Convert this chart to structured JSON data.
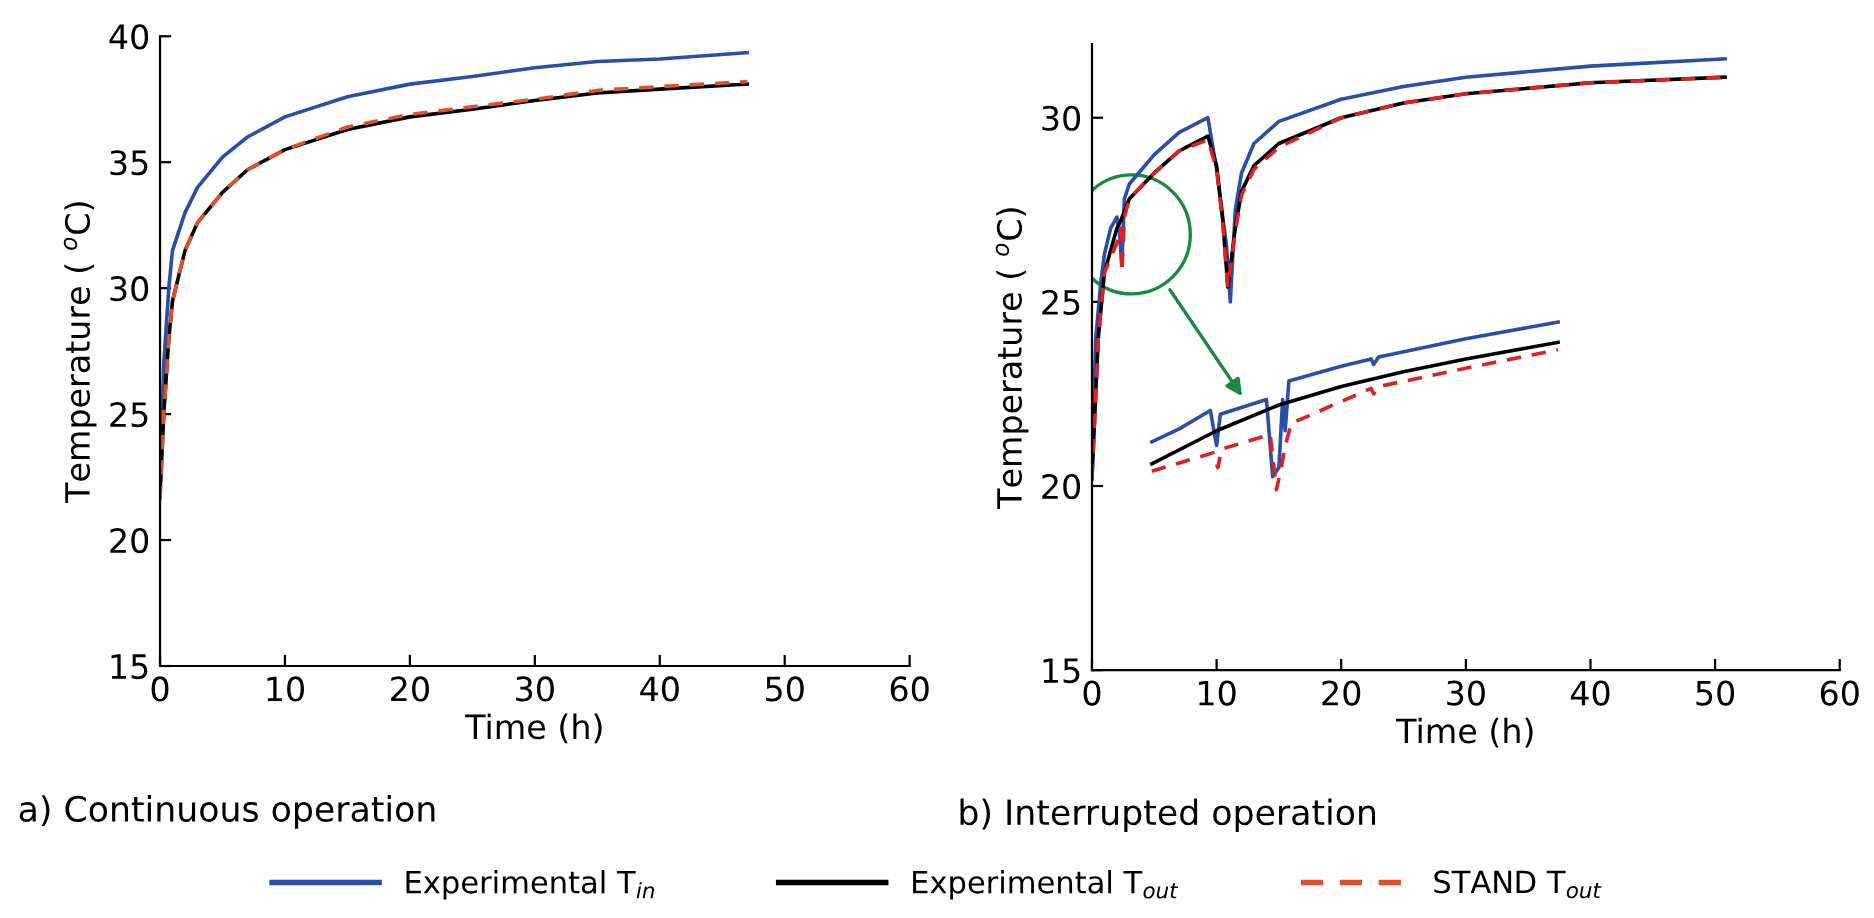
{
  "chart_data": [
    {
      "type": "line",
      "title": "a) Continuous operation",
      "xlabel": "Time (h)",
      "ylabel": "Temperature ( $^{o}$C)",
      "xlim": [
        0,
        60
      ],
      "ylim": [
        15,
        40
      ],
      "xticks": [
        0,
        10,
        20,
        30,
        40,
        50,
        60
      ],
      "yticks": [
        15,
        20,
        25,
        30,
        35,
        40
      ],
      "grid": false,
      "legend": "bottom",
      "series": [
        {
          "name": "Experimental T$_{in}$",
          "color": "#2a4fa8",
          "line_style": "solid",
          "x": [
            0,
            0.3,
            0.7,
            1,
            2,
            3,
            5,
            7,
            10,
            15,
            20,
            25,
            30,
            35,
            40,
            47
          ],
          "values": [
            22,
            27,
            30,
            31.5,
            33,
            34,
            35.2,
            36,
            36.8,
            37.6,
            38.1,
            38.4,
            38.75,
            39.0,
            39.1,
            39.35
          ]
        },
        {
          "name": "Experimental T$_{out}$",
          "color": "#000000",
          "line_style": "solid",
          "x": [
            0,
            0.3,
            0.7,
            1,
            2,
            3,
            5,
            7,
            10,
            15,
            20,
            25,
            30,
            35,
            40,
            47
          ],
          "values": [
            21.8,
            25,
            28,
            29.5,
            31.5,
            32.6,
            33.8,
            34.7,
            35.5,
            36.3,
            36.8,
            37.1,
            37.45,
            37.75,
            37.9,
            38.1
          ]
        },
        {
          "name": "STAND T$_{out}$",
          "color": "#e0502a",
          "line_style": "dashed",
          "x": [
            0,
            0.3,
            0.7,
            1,
            2,
            3,
            5,
            7,
            10,
            15,
            20,
            25,
            30,
            35,
            40,
            47
          ],
          "values": [
            21.6,
            25,
            28,
            29.5,
            31.5,
            32.6,
            33.8,
            34.7,
            35.5,
            36.4,
            36.9,
            37.2,
            37.5,
            37.85,
            38.0,
            38.2
          ]
        }
      ]
    },
    {
      "type": "line",
      "title": "b) Interrupted operation",
      "xlabel": "Time (h)",
      "ylabel": "Temperature ( $^{o}$C)",
      "xlim": [
        0,
        60
      ],
      "ylim": [
        15,
        32
      ],
      "xticks": [
        0,
        10,
        20,
        30,
        40,
        50,
        60
      ],
      "yticks": [
        15,
        20,
        25,
        30
      ],
      "grid": false,
      "series": [
        {
          "color": "#2a4fa8",
          "line_style": "solid",
          "x": [
            0,
            0.3,
            0.7,
            1,
            1.5,
            2,
            2.2,
            2.4,
            2.6,
            3,
            5,
            7,
            9.3,
            10,
            10.8,
            11.1,
            11.5,
            12,
            13,
            15,
            20,
            25,
            30,
            40,
            50.8
          ],
          "values": [
            20.5,
            24,
            25.5,
            26.3,
            27,
            27.3,
            26.9,
            26.0,
            27.8,
            28.2,
            29,
            29.6,
            30.0,
            28.6,
            26.5,
            25.0,
            27.5,
            28.5,
            29.3,
            29.9,
            30.5,
            30.85,
            31.1,
            31.4,
            31.6
          ]
        },
        {
          "color": "#000000",
          "line_style": "solid",
          "x": [
            0,
            0.5,
            1,
            2,
            2.3,
            3,
            5,
            7,
            9.3,
            10,
            10.5,
            10.9,
            11.5,
            12,
            13,
            15,
            20,
            25,
            30,
            40,
            50.8
          ],
          "values": [
            20.2,
            24,
            25.8,
            27.0,
            27.2,
            27.8,
            28.5,
            29.1,
            29.5,
            28.7,
            27.2,
            25.4,
            27.0,
            28.0,
            28.7,
            29.3,
            30.0,
            30.4,
            30.65,
            30.95,
            31.1
          ]
        },
        {
          "color": "#e02020",
          "line_style": "dashed",
          "x": [
            0,
            0.5,
            1,
            2,
            2.3,
            2.4,
            2.6,
            3,
            5,
            7,
            9.3,
            10,
            10.5,
            10.9,
            11.5,
            12,
            13,
            15,
            20,
            25,
            30,
            40,
            50.8
          ],
          "values": [
            20.2,
            24,
            25.8,
            26.6,
            27.0,
            25.8,
            27.3,
            27.8,
            28.5,
            29.1,
            29.4,
            28.6,
            27.1,
            25.4,
            26.9,
            27.9,
            28.6,
            29.2,
            30.0,
            30.4,
            30.65,
            30.95,
            31.1
          ]
        },
        {
          "color": "#2a4fa8",
          "line_style": "solid",
          "x": [
            4.8,
            7,
            9.5,
            10.0,
            10.3,
            14,
            14.5,
            15,
            15.3,
            15.5,
            15.8,
            20,
            22.4,
            22.6,
            23,
            30,
            37.4
          ],
          "values": [
            21.2,
            21.55,
            22.05,
            21.1,
            21.95,
            22.35,
            20.25,
            20.5,
            22.35,
            21.5,
            22.85,
            23.25,
            23.45,
            23.3,
            23.5,
            24.0,
            24.45
          ]
        },
        {
          "color": "#000000",
          "line_style": "solid",
          "x": [
            4.8,
            10,
            15,
            20,
            25,
            30,
            37.4
          ],
          "values": [
            20.6,
            21.5,
            22.2,
            22.7,
            23.1,
            23.45,
            23.9
          ]
        },
        {
          "color": "#e02020",
          "line_style": "dashed",
          "x": [
            4.8,
            9.7,
            10.1,
            10.4,
            14.3,
            14.8,
            15.2,
            15.5,
            16,
            22.4,
            22.6,
            23,
            30,
            37.4
          ],
          "values": [
            20.4,
            20.9,
            20.5,
            21.0,
            21.4,
            19.9,
            20.5,
            21.1,
            21.7,
            22.65,
            22.5,
            22.7,
            23.2,
            23.7
          ]
        }
      ]
    }
  ]
}
